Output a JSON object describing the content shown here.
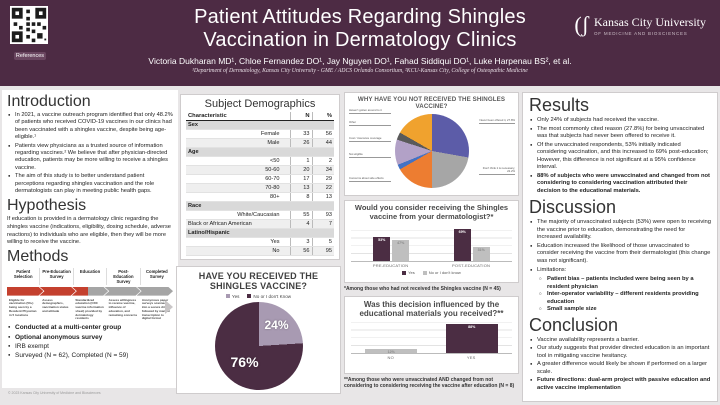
{
  "header": {
    "title_line1": "Patient Attitudes Regarding Shingles",
    "title_line2": "Vaccination in Dermatology Clinics",
    "authors": "Victoria Dukharan MD¹, Chloe Fernandez DO¹, Jay Nguyen DO¹, Fahad Siddiqui DO¹, Luke Harpenau BS², et al.",
    "affiliations": "¹Department of Dermatology, Kansas City University - GME / ADCS Orlando Consortium, ²KCU-Kansas City, College of Osteopathic Medicine",
    "qr_label": "References",
    "logo_name": "Kansas City University",
    "logo_sub": "OF MEDICINE AND BIOSCIENCES"
  },
  "colors": {
    "header_bg": "#4d2b44",
    "dark_plum": "#4b2d43",
    "light_plum": "#a89ab2",
    "arrow_red": "#c4402e",
    "arrow_gray": "#a5a5a5",
    "bar_gray": "#bfbfbf"
  },
  "intro": {
    "heading": "Introduction",
    "bullets": [
      "In 2021, a vaccine outreach program identified that only 48.2% of patients who received COVID-19 vaccines in our clinics had been vaccinated with a shingles vaccine, despite being age-eligible.¹",
      "Patients view physicians as a trusted source of information regarding vaccines.² We believe that after physician-directed education, patients may be more willing to receive a shingles vaccine.",
      "The aim of this study is to better understand patient perceptions regarding shingles vaccination and the role dermatologists can play in meeting public health gaps."
    ]
  },
  "hypothesis": {
    "heading": "Hypothesis",
    "text": "If education is provided in a dermatology clinic regarding the shingles vaccine (indications, eligibility, dosing schedule, adverse reactions) to individuals who are eligible, then they will be more willing to receive the vaccine."
  },
  "methods": {
    "heading": "Methods",
    "stages": [
      "Patient Selection",
      "Pre-Education Survey",
      "Education",
      "Post-Education Survey",
      "Completed Survey"
    ],
    "stage_notes": [
      "Eligible for vaccination (50+) being seen by a Resident Physician in 5 locations",
      "Assess demographics, vaccination status and attitude",
      "Standardized education (CDC vaccine information sheet) provided by dermatology residents",
      "Assess willingness to receive vaccine, influence of education, and remaining concerns",
      "Anonymous paper surveys scanned into a secure drive, followed by manual transcription to digital format"
    ],
    "bullets": [
      "Conducted at a multi-center group",
      "Optional anonymous survey",
      "IRB exempt",
      "Surveyed (N = 62),  Completed (N = 59)"
    ]
  },
  "footer": "© 2023 Kansas City University of Medicine and Biosciences",
  "demographics": {
    "title": "Subject Demographics",
    "columns": [
      "Characteristic",
      "N",
      "%"
    ],
    "rows": [
      {
        "label": "Sex",
        "group": true
      },
      {
        "label": "Female",
        "n": "33",
        "pct": "56"
      },
      {
        "label": "Male",
        "n": "26",
        "pct": "44"
      },
      {
        "label": "Age",
        "group": true
      },
      {
        "label": "<50",
        "n": "1",
        "pct": "2"
      },
      {
        "label": "50-60",
        "n": "20",
        "pct": "34"
      },
      {
        "label": "60-70",
        "n": "17",
        "pct": "29"
      },
      {
        "label": "70-80",
        "n": "13",
        "pct": "22"
      },
      {
        "label": "80+",
        "n": "8",
        "pct": "13"
      },
      {
        "label": "Race",
        "group": true
      },
      {
        "label": "White/Caucasian",
        "n": "55",
        "pct": "93"
      },
      {
        "label": "Black or African American",
        "n": "4",
        "pct": "7",
        "leftlab": true
      },
      {
        "label": "Latino/Hispanic",
        "group": true
      },
      {
        "label": "Yes",
        "n": "3",
        "pct": "5"
      },
      {
        "label": "No",
        "n": "56",
        "pct": "95"
      }
    ]
  },
  "chart_data": [
    {
      "id": "why_not_vaccinated",
      "type": "pie",
      "title": "WHY HAVE YOU NOT RECEIVED THE SHINGLES VACCINE?",
      "slices": [
        {
          "label": "Never been offered it, 27.8%",
          "value": 27.8,
          "color": "#5c5ca8"
        },
        {
          "label": "Don't think it is necessary, 22.2%",
          "value": 22.2,
          "color": "#a6a6a6"
        },
        {
          "label": "Concerns about side effects",
          "value": 16.7,
          "color": "#ed7d31"
        },
        {
          "label": "Not eligible",
          "value": 2.2,
          "color": "#4472c4"
        },
        {
          "label": "Cost / insurance coverage",
          "value": 11.1,
          "color": "#b2a1c7"
        },
        {
          "label": "Other",
          "value": 3.3,
          "color": "#5a5a5a"
        },
        {
          "label": "Haven't gotten around to it",
          "value": 16.7,
          "color": "#f0a22e"
        }
      ]
    },
    {
      "id": "received_vaccine",
      "type": "pie",
      "title": "HAVE YOU RECEIVED THE SHINGLES VACCINE?",
      "slices": [
        {
          "label": "Yes",
          "value": 24,
          "color": "#a89ab2",
          "pct_label": "24%"
        },
        {
          "label": "No or I don't Know",
          "value": 76,
          "color": "#4b2d43",
          "pct_label": "76%"
        }
      ]
    },
    {
      "id": "consider_from_dermatologist",
      "type": "bar",
      "title": "Would you consider receiving the Shingles vaccine from your dermatologist?*",
      "categories": [
        "PRE-EDUCATION",
        "POST-EDUCATION"
      ],
      "series": [
        {
          "name": "Yes",
          "color": "#4b2d43",
          "values": [
            53,
            69
          ]
        },
        {
          "name": "No or I don't know",
          "color": "#bfbfbf",
          "values": [
            47,
            31
          ]
        }
      ],
      "ylim": [
        0,
        80
      ],
      "footnote": "*Among those who had not received the Shingles vaccine (N = 45)"
    },
    {
      "id": "influenced_by_materials",
      "type": "bar",
      "title": "Was this decision influenced by the educational materials you received?**",
      "categories": [
        "NO",
        "YES"
      ],
      "values": [
        12,
        88
      ],
      "colors": [
        "#bfbfbf",
        "#4b2d43"
      ],
      "ylim": [
        0,
        100
      ],
      "footnote": "**Among those who were unvaccinated AND changed from not considering to considering receiving the vaccine after education (N = 8)"
    }
  ],
  "results": {
    "heading": "Results",
    "bullets": [
      "Only 24% of subjects had received the vaccine.",
      "The most commonly cited reason (27.8%) for being unvaccinated was that subjects had never been offered to receive it.",
      "Of the unvaccinated respondents, 53% initially indicated considering vaccination, and this increased to 69% post-education; However, this difference is not significant at a 95% confidence interval.",
      "88% of subjects who were unvaccinated and changed from not considering to considering vaccination attributed their decision to the educational materials."
    ]
  },
  "discussion": {
    "heading": "Discussion",
    "bullets": [
      "The majority of unvaccinated subjects (53%) were open to receiving the vaccine prior to education, demonstrating the need for increased availability.",
      "Education increased the likelihood of those unvaccinated to consider receiving the vaccine from their dermatologist (this change was not significant).",
      "Limitations:"
    ],
    "limitations": [
      "Patient bias – patients included were being seen by a resident physician",
      "Inter-operator variability – different residents providing education",
      "Small sample size"
    ]
  },
  "conclusion": {
    "heading": "Conclusion",
    "bullets": [
      "Vaccine availability represents a barrier.",
      "Our study suggests that provider directed education is an important tool in mitigating vaccine hesitancy.",
      "A greater difference would likely be shown if performed on a larger scale.",
      "Future directions: dual-arm project with passive education and active vaccine implementation"
    ]
  }
}
